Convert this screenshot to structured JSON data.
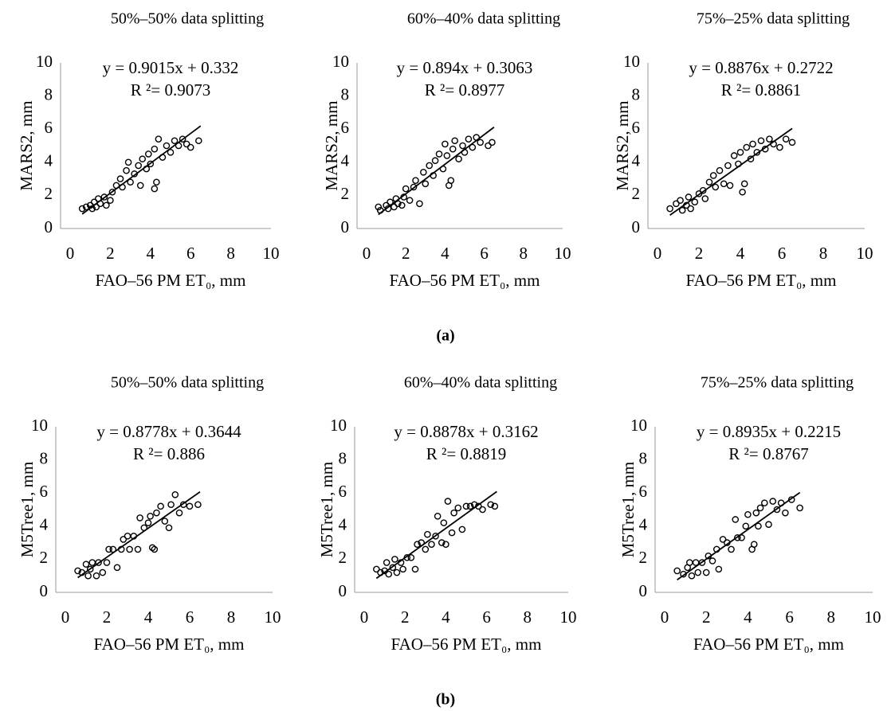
{
  "chart_data": [
    {
      "type": "scatter",
      "title": "50%–50% data splitting",
      "x_label": "FAO–56 PM ET₀, mm",
      "y_label": "MARS2, mm",
      "color": "#000000",
      "xlim": [
        0,
        10
      ],
      "ylim": [
        0,
        10
      ],
      "xticks": [
        0,
        2,
        4,
        6,
        8,
        10
      ],
      "yticks": [
        0,
        2,
        4,
        6,
        8,
        10
      ],
      "x": [
        0.6,
        0.8,
        1.0,
        1.1,
        1.2,
        1.3,
        1.4,
        1.5,
        1.7,
        1.8,
        2.0,
        2.1,
        2.3,
        2.5,
        2.6,
        2.8,
        2.9,
        3.0,
        3.2,
        3.4,
        3.5,
        3.6,
        3.8,
        3.9,
        4.0,
        4.2,
        4.2,
        4.3,
        4.4,
        4.6,
        4.8,
        5.0,
        5.2,
        5.4,
        5.6,
        5.8,
        6.0,
        6.4
      ],
      "values": [
        1.2,
        1.3,
        1.4,
        1.2,
        1.6,
        1.3,
        1.8,
        1.5,
        1.9,
        1.4,
        1.7,
        2.2,
        2.6,
        3.0,
        2.5,
        3.5,
        4.0,
        2.8,
        3.3,
        3.8,
        2.6,
        4.2,
        3.6,
        4.5,
        3.9,
        4.8,
        2.4,
        2.8,
        5.4,
        4.3,
        5.0,
        4.6,
        5.3,
        5.0,
        5.4,
        5.1,
        4.9,
        5.3
      ],
      "trendline": {
        "slope": 0.9015,
        "intercept": 0.332,
        "x_range": [
          0.6,
          6.5
        ],
        "equation": "y = 0.9015x + 0.332",
        "r_squared_label": "R ²= 0.9073"
      }
    },
    {
      "type": "scatter",
      "title": "60%–40% data splitting",
      "x_label": "FAO–56 PM ET₀, mm",
      "y_label": "MARS2, mm",
      "color": "#000000",
      "xlim": [
        0,
        10
      ],
      "ylim": [
        0,
        10
      ],
      "xticks": [
        0,
        2,
        4,
        6,
        8,
        10
      ],
      "yticks": [
        0,
        2,
        4,
        6,
        8,
        10
      ],
      "x": [
        0.6,
        0.7,
        1.0,
        1.1,
        1.2,
        1.4,
        1.5,
        1.6,
        1.8,
        1.9,
        2.0,
        2.2,
        2.4,
        2.5,
        2.7,
        2.9,
        3.0,
        3.2,
        3.4,
        3.5,
        3.7,
        3.9,
        4.0,
        4.1,
        4.2,
        4.3,
        4.4,
        4.5,
        4.7,
        4.9,
        5.0,
        5.2,
        5.4,
        5.6,
        5.8,
        6.2,
        6.4
      ],
      "values": [
        1.3,
        1.1,
        1.4,
        1.2,
        1.6,
        1.3,
        1.8,
        1.5,
        1.4,
        1.9,
        2.4,
        1.7,
        2.5,
        2.9,
        1.5,
        3.4,
        2.7,
        3.8,
        3.2,
        4.1,
        4.5,
        3.6,
        5.1,
        4.4,
        2.6,
        2.9,
        4.8,
        5.3,
        4.2,
        5.0,
        4.6,
        5.4,
        4.9,
        5.5,
        5.2,
        5.0,
        5.2
      ],
      "trendline": {
        "slope": 0.894,
        "intercept": 0.3063,
        "x_range": [
          0.6,
          6.5
        ],
        "equation": "y = 0.894x + 0.3063",
        "r_squared_label": "R ²= 0.8977"
      }
    },
    {
      "type": "scatter",
      "title": "75%–25% data splitting",
      "x_label": "FAO–56 PM ET₀, mm",
      "y_label": "MARS2, mm",
      "color": "#000000",
      "xlim": [
        0,
        10
      ],
      "ylim": [
        0,
        10
      ],
      "xticks": [
        0,
        2,
        4,
        6,
        8,
        10
      ],
      "yticks": [
        0,
        2,
        4,
        6,
        8,
        10
      ],
      "x": [
        0.6,
        0.9,
        1.1,
        1.2,
        1.4,
        1.5,
        1.6,
        1.8,
        2.0,
        2.2,
        2.3,
        2.5,
        2.7,
        2.8,
        3.0,
        3.2,
        3.4,
        3.5,
        3.7,
        3.9,
        4.0,
        4.1,
        4.2,
        4.3,
        4.5,
        4.6,
        4.8,
        5.0,
        5.2,
        5.4,
        5.6,
        5.9,
        6.2,
        6.5
      ],
      "values": [
        1.2,
        1.5,
        1.7,
        1.1,
        1.4,
        1.9,
        1.2,
        1.6,
        2.1,
        2.3,
        1.8,
        2.8,
        3.2,
        2.5,
        3.5,
        2.7,
        3.8,
        2.6,
        4.4,
        3.9,
        4.6,
        2.2,
        2.7,
        4.9,
        4.2,
        5.1,
        4.6,
        5.3,
        4.8,
        5.4,
        5.1,
        4.9,
        5.4,
        5.2
      ],
      "trendline": {
        "slope": 0.8876,
        "intercept": 0.2722,
        "x_range": [
          0.6,
          6.5
        ],
        "equation": "y = 0.8876x + 0.2722",
        "r_squared_label": "R ²= 0.8861"
      }
    },
    {
      "type": "scatter",
      "title": "50%–50% data splitting",
      "x_label": "FAO–56 PM ET₀, mm",
      "y_label": "M5Tree1, mm",
      "color": "#000000",
      "xlim": [
        0,
        10
      ],
      "ylim": [
        0,
        10
      ],
      "xticks": [
        0,
        2,
        4,
        6,
        8,
        10
      ],
      "yticks": [
        0,
        2,
        4,
        6,
        8,
        10
      ],
      "x": [
        0.6,
        0.8,
        1.0,
        1.1,
        1.2,
        1.3,
        1.5,
        1.6,
        1.8,
        2.0,
        2.1,
        2.3,
        2.5,
        2.7,
        2.8,
        3.0,
        3.1,
        3.3,
        3.5,
        3.6,
        3.8,
        4.0,
        4.1,
        4.2,
        4.3,
        4.4,
        4.6,
        4.8,
        5.0,
        5.1,
        5.3,
        5.5,
        5.7,
        6.0,
        6.4
      ],
      "values": [
        1.3,
        1.2,
        1.7,
        1.0,
        1.4,
        1.8,
        1.0,
        1.8,
        1.2,
        1.8,
        2.6,
        2.6,
        1.5,
        2.6,
        3.2,
        3.4,
        2.6,
        3.4,
        2.6,
        4.5,
        3.9,
        4.2,
        4.6,
        2.7,
        2.6,
        4.8,
        5.2,
        4.3,
        3.9,
        5.3,
        5.9,
        4.8,
        5.3,
        5.2,
        5.3
      ],
      "trendline": {
        "slope": 0.8778,
        "intercept": 0.3644,
        "x_range": [
          0.6,
          6.5
        ],
        "equation": "y = 0.8778x + 0.3644",
        "r_squared_label": "R ²= 0.886"
      }
    },
    {
      "type": "scatter",
      "title": "60%–40% data splitting",
      "x_label": "FAO–56 PM ET₀, mm",
      "y_label": "M5Tree1, mm",
      "color": "#000000",
      "xlim": [
        0,
        10
      ],
      "ylim": [
        0,
        10
      ],
      "xticks": [
        0,
        2,
        4,
        6,
        8,
        10
      ],
      "yticks": [
        0,
        2,
        4,
        6,
        8,
        10
      ],
      "x": [
        0.6,
        0.8,
        1.0,
        1.1,
        1.2,
        1.4,
        1.5,
        1.6,
        1.8,
        1.9,
        2.1,
        2.3,
        2.5,
        2.6,
        2.8,
        3.0,
        3.1,
        3.3,
        3.5,
        3.6,
        3.8,
        3.9,
        4.0,
        4.1,
        4.3,
        4.4,
        4.6,
        4.8,
        5.0,
        5.2,
        5.4,
        5.6,
        5.8,
        6.2,
        6.4
      ],
      "values": [
        1.4,
        1.2,
        1.3,
        1.8,
        1.1,
        1.5,
        2.0,
        1.2,
        1.8,
        1.4,
        2.1,
        2.1,
        1.4,
        2.9,
        3.0,
        2.6,
        3.5,
        2.9,
        3.4,
        4.6,
        3.0,
        4.2,
        2.9,
        5.5,
        3.6,
        4.8,
        5.1,
        3.8,
        5.2,
        5.2,
        5.3,
        5.2,
        5.0,
        5.3,
        5.2
      ],
      "trendline": {
        "slope": 0.8878,
        "intercept": 0.3162,
        "x_range": [
          0.6,
          6.5
        ],
        "equation": "y = 0.8878x + 0.3162",
        "r_squared_label": "R ²= 0.8819"
      }
    },
    {
      "type": "scatter",
      "title": "75%–25% data splitting",
      "x_label": "FAO–56 PM ET₀, mm",
      "y_label": "M5Tree1, mm",
      "color": "#000000",
      "xlim": [
        0,
        10
      ],
      "ylim": [
        0,
        10
      ],
      "xticks": [
        0,
        2,
        4,
        6,
        8,
        10
      ],
      "yticks": [
        0,
        2,
        4,
        6,
        8,
        10
      ],
      "x": [
        0.6,
        0.9,
        1.1,
        1.2,
        1.3,
        1.5,
        1.6,
        1.8,
        2.0,
        2.1,
        2.3,
        2.5,
        2.6,
        2.8,
        3.0,
        3.2,
        3.4,
        3.5,
        3.7,
        3.9,
        4.0,
        4.2,
        4.3,
        4.4,
        4.5,
        4.6,
        4.8,
        5.0,
        5.2,
        5.4,
        5.6,
        5.8,
        6.1,
        6.5
      ],
      "values": [
        1.3,
        1.1,
        1.5,
        1.8,
        1.0,
        1.8,
        1.2,
        1.8,
        1.2,
        2.2,
        1.9,
        2.6,
        1.4,
        3.2,
        3.0,
        2.6,
        4.4,
        3.3,
        3.3,
        4.0,
        4.7,
        2.6,
        2.9,
        4.8,
        4.0,
        5.1,
        5.4,
        4.1,
        5.5,
        5.0,
        5.4,
        4.8,
        5.6,
        5.1
      ],
      "trendline": {
        "slope": 0.8935,
        "intercept": 0.2215,
        "x_range": [
          0.6,
          6.5
        ],
        "equation": "y = 0.8935x + 0.2215",
        "r_squared_label": "R ²= 0.8767"
      }
    }
  ],
  "panel_labels": [
    "(a)",
    "(b)"
  ]
}
